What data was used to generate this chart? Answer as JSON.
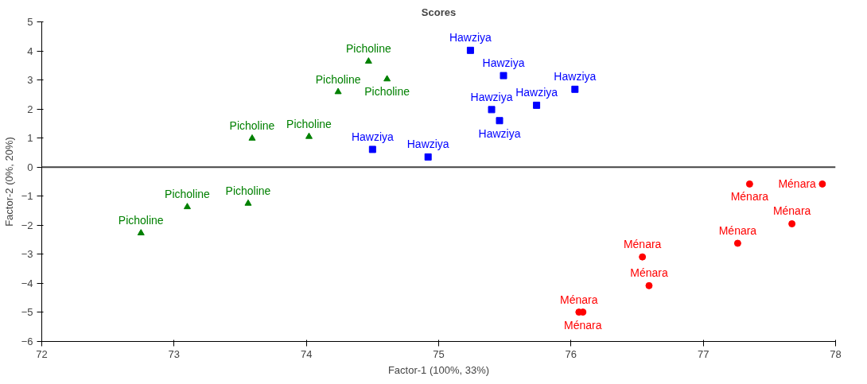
{
  "chart_data": {
    "type": "scatter",
    "title": "Scores",
    "xlabel": "Factor-1 (100%, 33%)",
    "ylabel": "Factor-2 (0%, 20%)",
    "xlim": [
      72,
      78
    ],
    "xticks": [
      72,
      73,
      74,
      75,
      76,
      77,
      78
    ],
    "ylim": [
      -6,
      5
    ],
    "yticks": [
      -6,
      -5,
      -4,
      -3,
      -2,
      -1,
      0,
      1,
      2,
      3,
      4,
      5
    ],
    "grid": false,
    "legend": false,
    "ref_lines": [
      {
        "axis": "y",
        "value": 0,
        "color": "#444444"
      }
    ],
    "series": [
      {
        "name": "Picholine",
        "color": "#008000",
        "marker": "triangle",
        "x": [
          72.75,
          73.1,
          73.56,
          73.59,
          74.02,
          74.24,
          74.47,
          74.61
        ],
        "values": [
          -2.27,
          -1.37,
          -1.25,
          0.99,
          1.05,
          2.59,
          3.64,
          3.03
        ]
      },
      {
        "name": "Hawziya",
        "color": "#0000ff",
        "marker": "square",
        "x": [
          75.24,
          75.49,
          76.03,
          75.74,
          75.4,
          75.46,
          74.5,
          74.92
        ],
        "values": [
          4.02,
          3.15,
          2.68,
          2.13,
          1.98,
          1.6,
          0.61,
          0.35
        ]
      },
      {
        "name": "Ménara",
        "color": "#ff0000",
        "marker": "circle",
        "x": [
          77.35,
          77.9,
          77.67,
          77.26,
          76.54,
          76.59,
          76.06,
          76.09
        ],
        "values": [
          -0.58,
          -0.58,
          -1.95,
          -2.62,
          -3.09,
          -4.08,
          -4.99,
          -4.99
        ]
      }
    ]
  }
}
